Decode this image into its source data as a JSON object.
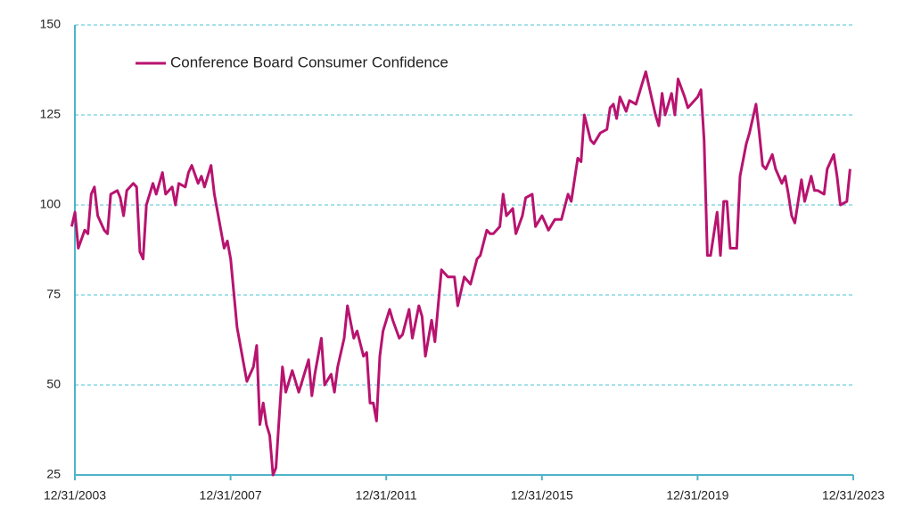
{
  "chart_data": {
    "type": "line",
    "x": [
      "2003-12",
      "2004-01",
      "2004-02",
      "2004-04",
      "2004-05",
      "2004-06",
      "2004-07",
      "2004-08",
      "2004-10",
      "2004-11",
      "2004-12",
      "2005-02",
      "2005-03",
      "2005-04",
      "2005-05",
      "2005-07",
      "2005-08",
      "2005-09",
      "2005-10",
      "2005-11",
      "2006-01",
      "2006-02",
      "2006-04",
      "2006-05",
      "2006-07",
      "2006-08",
      "2006-09",
      "2006-11",
      "2006-12",
      "2007-01",
      "2007-03",
      "2007-04",
      "2007-05",
      "2007-07",
      "2007-08",
      "2007-11",
      "2007-12",
      "2008-01",
      "2008-03",
      "2008-05",
      "2008-06",
      "2008-08",
      "2008-09",
      "2008-10",
      "2008-11",
      "2008-12",
      "2009-01",
      "2009-02",
      "2009-03",
      "2009-05",
      "2009-06",
      "2009-08",
      "2009-10",
      "2009-11",
      "2010-01",
      "2010-02",
      "2010-03",
      "2010-05",
      "2010-06",
      "2010-08",
      "2010-09",
      "2010-10",
      "2010-12",
      "2011-01",
      "2011-03",
      "2011-04",
      "2011-06",
      "2011-07",
      "2011-08",
      "2011-09",
      "2011-10",
      "2011-11",
      "2011-12",
      "2012-02",
      "2012-03",
      "2012-05",
      "2012-06",
      "2012-08",
      "2012-09",
      "2012-11",
      "2012-12",
      "2013-01",
      "2013-03",
      "2013-04",
      "2013-05",
      "2013-06",
      "2013-08",
      "2013-10",
      "2013-11",
      "2013-12",
      "2014-01",
      "2014-03",
      "2014-05",
      "2014-06",
      "2014-08",
      "2014-09",
      "2014-10",
      "2014-12",
      "2015-01",
      "2015-02",
      "2015-04",
      "2015-05",
      "2015-07",
      "2015-08",
      "2015-10",
      "2015-11",
      "2016-01",
      "2016-02",
      "2016-03",
      "2016-05",
      "2016-07",
      "2016-09",
      "2016-10",
      "2016-12",
      "2017-01",
      "2017-02",
      "2017-04",
      "2017-05",
      "2017-07",
      "2017-09",
      "2017-10",
      "2017-11",
      "2017-12",
      "2018-01",
      "2018-03",
      "2018-04",
      "2018-06",
      "2018-08",
      "2018-09",
      "2018-10",
      "2018-12",
      "2019-01",
      "2019-02",
      "2019-03",
      "2019-05",
      "2019-06",
      "2019-07",
      "2019-09",
      "2019-10",
      "2019-11",
      "2020-01",
      "2020-02",
      "2020-03",
      "2020-04",
      "2020-05",
      "2020-07",
      "2020-08",
      "2020-09",
      "2020-10",
      "2020-11",
      "2021-01",
      "2021-02",
      "2021-04",
      "2021-05",
      "2021-07",
      "2021-08",
      "2021-09",
      "2021-10",
      "2021-12",
      "2022-01",
      "2022-03",
      "2022-04",
      "2022-05",
      "2022-06",
      "2022-07",
      "2022-09",
      "2022-10",
      "2022-12",
      "2023-01",
      "2023-02",
      "2023-04",
      "2023-05",
      "2023-07",
      "2023-08",
      "2023-09",
      "2023-11",
      "2023-12"
    ],
    "series": [
      {
        "name": "Conference Board Consumer Confidence",
        "color": "#b8136f",
        "values": [
          94,
          98,
          88,
          93,
          92,
          103,
          105,
          97,
          93,
          92,
          103,
          104,
          102,
          97,
          104,
          106,
          105,
          87,
          85,
          100,
          106,
          103,
          109,
          103,
          105,
          100,
          106,
          105,
          109,
          111,
          106,
          108,
          105,
          111,
          103,
          88,
          90,
          85,
          66,
          56,
          51,
          55,
          61,
          39,
          45,
          39,
          36,
          25,
          27,
          55,
          48,
          54,
          48,
          51,
          57,
          47,
          53,
          63,
          50,
          53,
          48,
          55,
          63,
          72,
          63,
          65,
          58,
          59,
          45,
          45,
          40,
          58,
          65,
          71,
          68,
          63,
          64,
          71,
          63,
          72,
          69,
          58,
          68,
          62,
          72,
          82,
          80,
          80,
          72,
          76,
          80,
          78,
          85,
          86,
          93,
          92,
          92,
          94,
          103,
          97,
          99,
          92,
          97,
          102,
          103,
          94,
          97,
          95,
          93,
          96,
          96,
          103,
          101,
          113,
          112,
          125,
          118,
          117,
          120,
          121,
          127,
          128,
          124,
          130,
          126,
          129,
          128,
          134,
          137,
          133,
          125,
          122,
          131,
          125,
          131,
          125,
          135,
          130,
          127,
          128,
          130,
          132,
          118,
          86,
          86,
          98,
          86,
          101,
          101,
          88,
          88,
          108,
          117,
          120,
          128,
          120,
          111,
          110,
          114,
          110,
          106,
          108,
          103,
          97,
          95,
          107,
          101,
          108,
          104,
          104,
          103,
          110,
          114,
          108,
          100,
          101,
          110
        ]
      }
    ],
    "ylim": [
      25,
      150
    ],
    "yticks": [
      25,
      50,
      75,
      100,
      125,
      150
    ],
    "xlim": [
      "2003-12-31",
      "2023-12-31"
    ],
    "xticks": [
      {
        "value": "2003-12-31",
        "label": "12/31/2003"
      },
      {
        "value": "2007-12-31",
        "label": "12/31/2007"
      },
      {
        "value": "2011-12-31",
        "label": "12/31/2011"
      },
      {
        "value": "2015-12-31",
        "label": "12/31/2015"
      },
      {
        "value": "2019-12-31",
        "label": "12/31/2019"
      },
      {
        "value": "2023-12-31",
        "label": "12/31/2023"
      }
    ],
    "grid": true,
    "legend": "top-left"
  }
}
